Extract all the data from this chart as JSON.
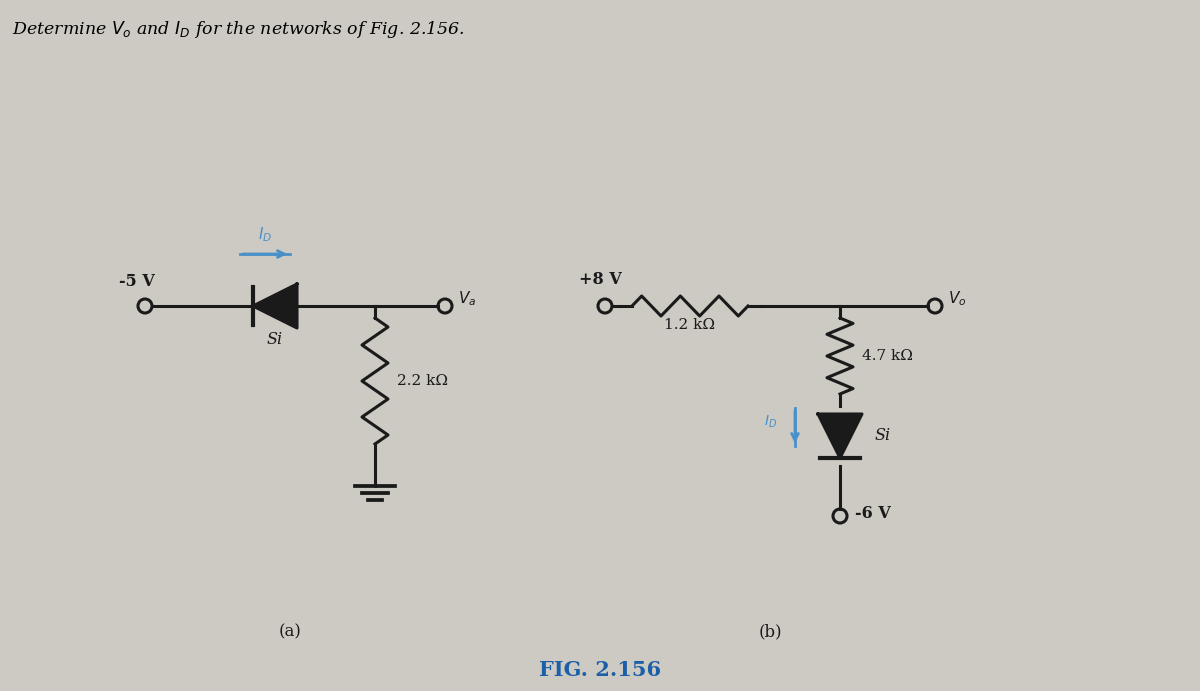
{
  "title": "Determine $V_o$ and $I_D$ for the networks of Fig. 2.156.",
  "fig_label": "FIG. 2.156",
  "background_color": "#cdc9c3",
  "title_color": "#000000",
  "fig_label_color": "#1a5fa8",
  "circuit_color": "#1a1a1a",
  "label_color_blue": "#4a90c8",
  "circuit_a": {
    "label": "(a)",
    "supply_label": "-5 V",
    "diode_label": "Si",
    "resistor_label": "2.2 kΩ",
    "vo_label": "$V_a$"
  },
  "circuit_b": {
    "label": "(b)",
    "supply_label": "+8 V",
    "resistor1_label": "1.2 kΩ",
    "resistor2_label": "4.7 kΩ",
    "diode_label": "Si",
    "voltage_label": "-6 V",
    "vo_label": "$V_o$"
  }
}
